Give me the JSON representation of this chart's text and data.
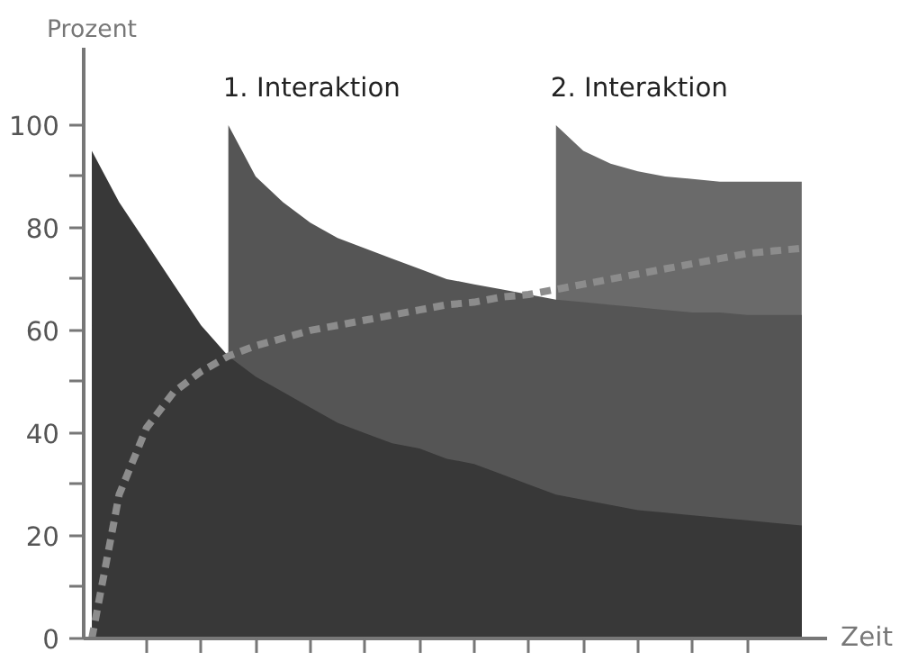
{
  "chart_data": {
    "type": "area",
    "xlabel": "Zeit",
    "ylabel": "Prozent",
    "categories": [
      null,
      null,
      null,
      null,
      null,
      null,
      null,
      null,
      null,
      null,
      null,
      null,
      null,
      null,
      null,
      null,
      null,
      null,
      null,
      null,
      null,
      null,
      null,
      null,
      null,
      null,
      null
    ],
    "series": [
      {
        "color": "#6a6a6a",
        "values": [
          null,
          null,
          null,
          null,
          null,
          null,
          null,
          null,
          null,
          null,
          null,
          null,
          null,
          null,
          null,
          null,
          null,
          100,
          95,
          92.5,
          91,
          90,
          89.5,
          89,
          89,
          89,
          89
        ]
      },
      {
        "color": "#555555",
        "values": [
          null,
          null,
          null,
          null,
          null,
          100,
          90,
          85,
          81,
          78,
          76,
          74,
          72,
          70,
          69,
          68,
          67,
          66,
          65.5,
          65,
          64.5,
          64,
          63.5,
          63.5,
          63,
          63,
          63
        ]
      },
      {
        "color": "#383838",
        "values": [
          95,
          85,
          77,
          69,
          61,
          55,
          51,
          48,
          45,
          42,
          40,
          38,
          37,
          35,
          34,
          32,
          30,
          28,
          27,
          26,
          25,
          24.5,
          24,
          23.5,
          23,
          22.5,
          22
        ]
      },
      {
        "type": "line",
        "color": "#8c8c8c",
        "line_style": "dashed",
        "values": [
          0,
          28,
          41,
          48,
          52,
          55,
          57,
          58.5,
          60,
          61,
          62,
          63,
          64,
          65,
          65.5,
          66.5,
          67,
          68,
          69,
          70,
          71,
          72,
          73,
          74,
          75,
          75.5,
          76
        ]
      }
    ],
    "annotations": [
      "1. Interaktion",
      "2. Interaktion"
    ],
    "ylim": [
      0,
      115
    ],
    "yticks": [
      0,
      20,
      40,
      60,
      80,
      100
    ],
    "grid": false
  }
}
